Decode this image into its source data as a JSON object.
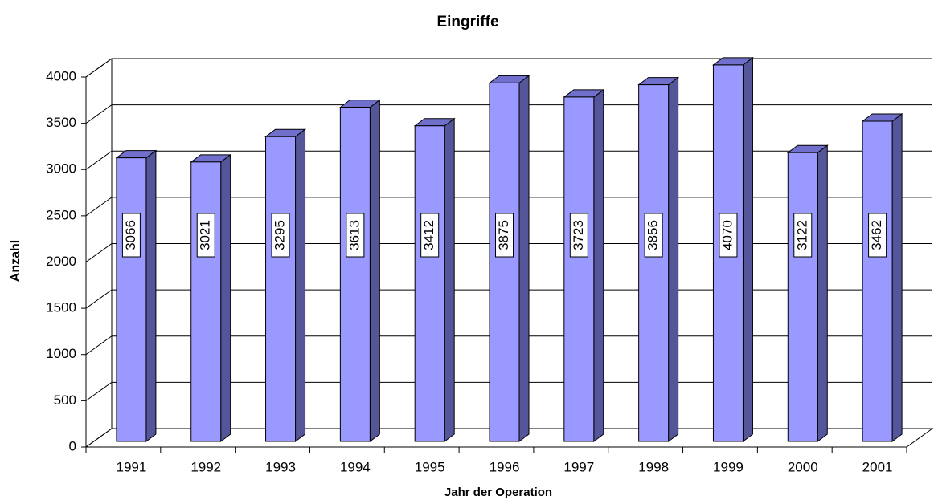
{
  "chart_data": {
    "type": "bar",
    "title": "Eingriffe",
    "x_label": "Jahr der Operation",
    "y_label": "Anzahl",
    "categories": [
      "1991",
      "1992",
      "1993",
      "1994",
      "1995",
      "1996",
      "1997",
      "1998",
      "1999",
      "2000",
      "2001"
    ],
    "values": [
      3066,
      3021,
      3295,
      3613,
      3412,
      3875,
      3723,
      3856,
      4070,
      3122,
      3462
    ],
    "color": "#9999ff",
    "ylim": [
      0,
      4000
    ],
    "yticks": [
      0,
      500,
      1000,
      1500,
      2000,
      2500,
      3000,
      3500,
      4000
    ],
    "grid": true
  }
}
